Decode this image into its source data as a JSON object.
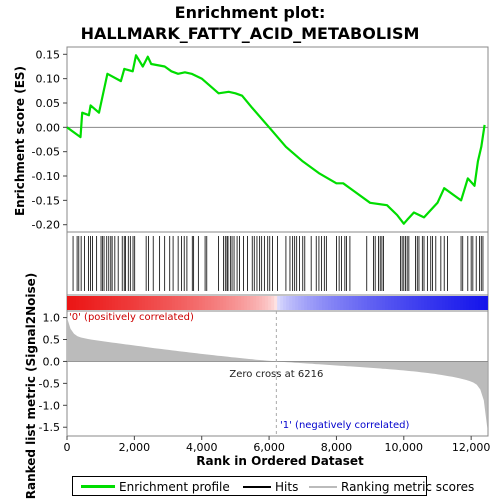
{
  "chart_data": {
    "type": "line",
    "title_line1": "Enrichment plot:",
    "title_line2": "HALLMARK_FATTY_ACID_METABOLISM",
    "ylabel_top": "Enrichment score (ES)",
    "ylabel_bottom": "Ranked list metric (Signal2Noise)",
    "xlabel": "Rank in Ordered Dataset",
    "x_ticks": [
      "0",
      "2,000",
      "4,000",
      "6,000",
      "8,000",
      "10,000",
      "12,000"
    ],
    "x_tick_values": [
      0,
      2000,
      4000,
      6000,
      8000,
      10000,
      12000
    ],
    "xlim": [
      0,
      12500
    ],
    "es_yticks": [
      "0.15",
      "0.10",
      "0.05",
      "0.00",
      "-0.05",
      "-0.10",
      "-0.15",
      "-0.20"
    ],
    "es_ytick_values": [
      0.15,
      0.1,
      0.05,
      0.0,
      -0.05,
      -0.1,
      -0.15,
      -0.2
    ],
    "es_ylim": [
      -0.215,
      0.165
    ],
    "metric_yticks": [
      "1.0",
      "0.5",
      "0.0",
      "-0.5",
      "-1.0",
      "-1.5"
    ],
    "metric_ytick_values": [
      1.0,
      0.5,
      0.0,
      -0.5,
      -1.0,
      -1.5
    ],
    "metric_ylim": [
      -1.7,
      1.15
    ],
    "zero_cross_label": "Zero cross at 6216",
    "zero_cross": 6216,
    "pos_label": "'0' (positively correlated)",
    "neg_label": "'1' (negatively correlated)",
    "n_genes": 12480,
    "es_curve": {
      "x": [
        0,
        400,
        450,
        650,
        700,
        950,
        1200,
        1600,
        1700,
        1950,
        2050,
        2250,
        2400,
        2500,
        2900,
        3100,
        3300,
        3500,
        3700,
        4000,
        4500,
        4800,
        5000,
        5200,
        5500,
        6000,
        6500,
        7000,
        7500,
        8000,
        8200,
        8500,
        9000,
        9500,
        9800,
        10000,
        10100,
        10300,
        10600,
        11000,
        11200,
        11500,
        11700,
        11900,
        12100,
        12200,
        12300,
        12400
      ],
      "y": [
        0.0,
        -0.02,
        0.03,
        0.025,
        0.045,
        0.03,
        0.11,
        0.095,
        0.12,
        0.115,
        0.148,
        0.125,
        0.145,
        0.13,
        0.125,
        0.115,
        0.11,
        0.113,
        0.11,
        0.1,
        0.07,
        0.073,
        0.07,
        0.065,
        0.04,
        0.0,
        -0.04,
        -0.07,
        -0.095,
        -0.115,
        -0.115,
        -0.13,
        -0.155,
        -0.16,
        -0.18,
        -0.198,
        -0.19,
        -0.175,
        -0.185,
        -0.155,
        -0.125,
        -0.14,
        -0.15,
        -0.105,
        -0.12,
        -0.07,
        -0.04,
        0.005
      ]
    },
    "hits": [
      180,
      300,
      350,
      420,
      520,
      640,
      700,
      760,
      880,
      1010,
      1050,
      1100,
      1180,
      1240,
      1300,
      1340,
      1420,
      1520,
      1640,
      1700,
      1740,
      1820,
      1880,
      1960,
      2010,
      2350,
      2420,
      2560,
      2750,
      2900,
      3050,
      3150,
      3300,
      3400,
      3480,
      3560,
      3720,
      3760,
      3900,
      4100,
      4150,
      4500,
      4650,
      4700,
      4750,
      4780,
      4850,
      4900,
      4960,
      5050,
      5120,
      5240,
      5360,
      5500,
      5560,
      5640,
      5720,
      5780,
      5860,
      5960,
      6020,
      6100,
      6250,
      6500,
      6620,
      6700,
      6760,
      6820,
      6900,
      7000,
      7060,
      7250,
      7400,
      7480,
      7560,
      7640,
      7700,
      8000,
      8080,
      8150,
      8250,
      8300,
      8400,
      8900,
      9100,
      9150,
      9250,
      9300,
      9350,
      9400,
      9900,
      9950,
      10000,
      10050,
      10100,
      10150,
      10350,
      10400,
      10450,
      10550,
      10600,
      10700,
      10800,
      10850,
      10950,
      11100,
      11200,
      11300,
      11700,
      11750,
      11900,
      12000,
      12050,
      12150,
      12250,
      12300,
      12350
    ]
  },
  "legend": {
    "items": [
      {
        "label": "Enrichment profile",
        "color": "#00dd00"
      },
      {
        "label": "Hits",
        "color": "#000000"
      },
      {
        "label": "Ranking metric scores",
        "color": "#bbbbbb"
      }
    ]
  }
}
